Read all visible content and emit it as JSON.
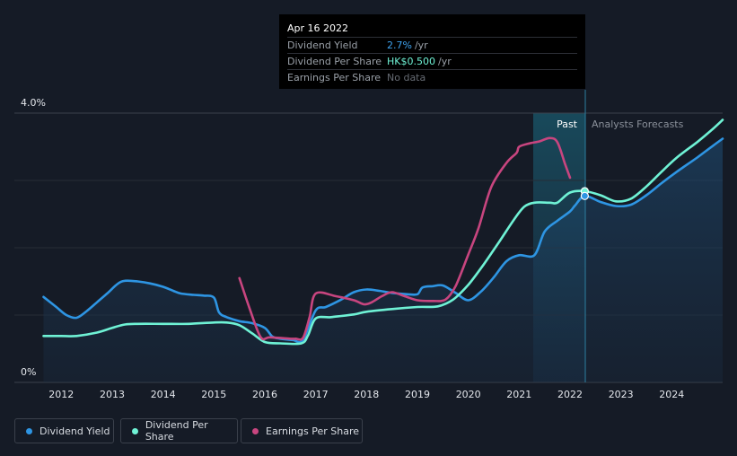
{
  "tooltip": {
    "date": "Apr 16 2022",
    "rows": [
      {
        "label": "Dividend Yield",
        "value": "2.7%",
        "unit": "/yr"
      },
      {
        "label": "Dividend Per Share",
        "value": "HK$0.500",
        "unit": "/yr"
      },
      {
        "label": "Earnings Per Share",
        "value": "No data",
        "unit": ""
      }
    ]
  },
  "labels": {
    "y_top": "4.0%",
    "y_bottom": "0%",
    "past": "Past",
    "forecast": "Analysts Forecasts"
  },
  "legend": [
    "Dividend Yield",
    "Dividend Per Share",
    "Earnings Per Share"
  ],
  "colors": {
    "background": "#151b26",
    "dividend_yield": "#2e95e3",
    "dividend_per_share": "#6ff2d5",
    "earnings_per_share": "#c8457f"
  },
  "chart_data": {
    "type": "line",
    "x_ticks": [
      "2012",
      "2013",
      "2014",
      "2015",
      "2016",
      "2017",
      "2018",
      "2019",
      "2020",
      "2021",
      "2022",
      "2023",
      "2024"
    ],
    "xlim": [
      2011.65,
      2025.0
    ],
    "ylim": [
      0,
      4.0
    ],
    "highlight_date": 2022.29,
    "series": [
      {
        "name": "Dividend Yield",
        "x": [
          2011.65,
          2011.9,
          2012.1,
          2012.3,
          2012.5,
          2012.7,
          2012.9,
          2013.1,
          2013.25,
          2013.5,
          2013.75,
          2014.0,
          2014.2,
          2014.35,
          2014.6,
          2014.8,
          2015.0,
          2015.1,
          2015.25,
          2015.5,
          2015.75,
          2016.0,
          2016.15,
          2016.3,
          2016.55,
          2016.75,
          2017.0,
          2017.2,
          2017.5,
          2017.75,
          2018.0,
          2018.25,
          2018.5,
          2018.8,
          2019.0,
          2019.1,
          2019.3,
          2019.5,
          2019.75,
          2020.0,
          2020.25,
          2020.5,
          2020.75,
          2021.0,
          2021.3,
          2021.5,
          2021.75,
          2022.0,
          2022.1,
          2022.29,
          2022.6,
          2022.9,
          2023.2,
          2023.5,
          2023.8,
          2024.1,
          2024.5,
          2024.8,
          2025.0
        ],
        "y": [
          1.27,
          1.12,
          1.0,
          0.96,
          1.06,
          1.19,
          1.32,
          1.46,
          1.51,
          1.5,
          1.47,
          1.42,
          1.36,
          1.32,
          1.3,
          1.29,
          1.26,
          1.04,
          0.97,
          0.91,
          0.88,
          0.81,
          0.68,
          0.65,
          0.63,
          0.63,
          1.07,
          1.12,
          1.23,
          1.34,
          1.38,
          1.36,
          1.33,
          1.31,
          1.31,
          1.41,
          1.43,
          1.44,
          1.33,
          1.22,
          1.35,
          1.56,
          1.8,
          1.89,
          1.89,
          2.24,
          2.4,
          2.54,
          2.63,
          2.77,
          2.68,
          2.62,
          2.64,
          2.78,
          2.96,
          3.13,
          3.34,
          3.51,
          3.62
        ]
      },
      {
        "name": "Dividend Per Share",
        "x": [
          2011.65,
          2012.0,
          2012.3,
          2012.7,
          2013.0,
          2013.25,
          2013.5,
          2014.0,
          2014.5,
          2015.0,
          2015.25,
          2015.5,
          2015.75,
          2016.0,
          2016.3,
          2016.72,
          2016.85,
          2017.0,
          2017.3,
          2017.75,
          2018.0,
          2018.5,
          2019.0,
          2019.4,
          2019.7,
          2020.0,
          2020.3,
          2020.6,
          2020.9,
          2021.1,
          2021.3,
          2021.6,
          2021.75,
          2022.0,
          2022.29,
          2022.6,
          2022.9,
          2023.2,
          2023.5,
          2023.8,
          2024.1,
          2024.5,
          2024.8,
          2025.0
        ],
        "y": [
          0.69,
          0.69,
          0.69,
          0.74,
          0.81,
          0.86,
          0.87,
          0.87,
          0.87,
          0.89,
          0.89,
          0.85,
          0.73,
          0.6,
          0.58,
          0.58,
          0.7,
          0.95,
          0.97,
          1.01,
          1.05,
          1.09,
          1.12,
          1.13,
          1.23,
          1.45,
          1.75,
          2.08,
          2.42,
          2.61,
          2.67,
          2.67,
          2.67,
          2.82,
          2.84,
          2.78,
          2.69,
          2.73,
          2.91,
          3.13,
          3.34,
          3.57,
          3.76,
          3.9
        ]
      },
      {
        "name": "Earnings Per Share",
        "x": [
          2015.5,
          2015.7,
          2015.92,
          2016.1,
          2016.5,
          2016.6,
          2016.75,
          2016.88,
          2017.0,
          2017.4,
          2017.75,
          2017.95,
          2018.1,
          2018.3,
          2018.5,
          2018.75,
          2019.0,
          2019.3,
          2019.55,
          2019.75,
          2020.0,
          2020.2,
          2020.45,
          2020.75,
          2020.95,
          2021.0,
          2021.2,
          2021.4,
          2021.6,
          2021.75,
          2021.9,
          2022.0
        ],
        "y": [
          1.55,
          1.1,
          0.67,
          0.67,
          0.65,
          0.65,
          0.66,
          0.97,
          1.32,
          1.28,
          1.22,
          1.16,
          1.19,
          1.28,
          1.34,
          1.28,
          1.22,
          1.21,
          1.23,
          1.43,
          1.9,
          2.29,
          2.9,
          3.26,
          3.41,
          3.5,
          3.55,
          3.58,
          3.63,
          3.57,
          3.25,
          3.04
        ]
      }
    ]
  }
}
